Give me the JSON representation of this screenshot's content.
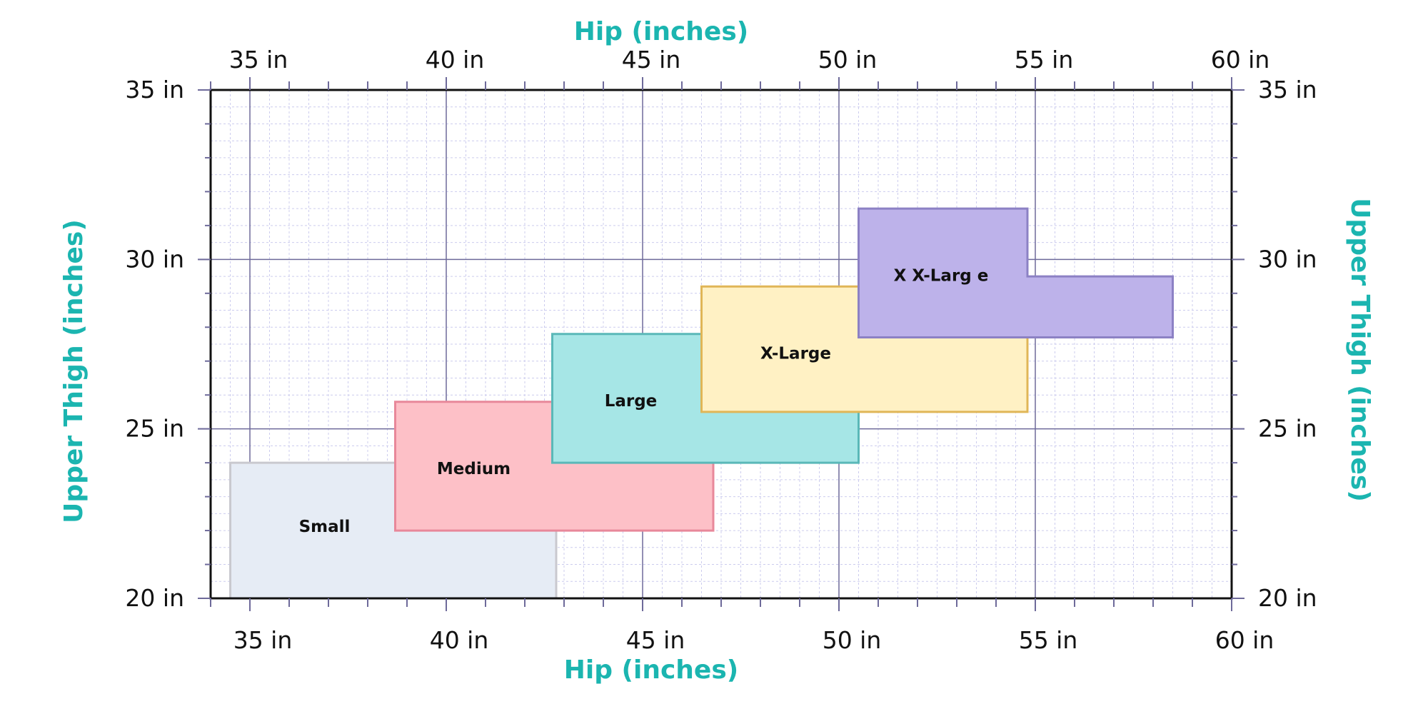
{
  "chart_data": {
    "type": "area",
    "title": "",
    "xlabel_top": "Hip (inches)",
    "xlabel_bottom": "Hip (inches)",
    "ylabel_left": "Upper Thigh (inches)",
    "ylabel_right": "Upper Thigh (inches)",
    "xlim": [
      34,
      60
    ],
    "ylim": [
      20,
      35
    ],
    "x_ticks": [
      35,
      40,
      45,
      50,
      55,
      60
    ],
    "y_ticks": [
      20,
      25,
      30,
      35
    ],
    "x_tick_labels": [
      "35 in",
      "40 in",
      "45 in",
      "50 in",
      "55 in",
      "60 in"
    ],
    "y_tick_labels": [
      "20 in",
      "25 in",
      "30 in",
      "35 in"
    ],
    "grid": true,
    "regions": [
      {
        "name": "Small",
        "label": "Small",
        "fill": "#e6ecf5",
        "stroke": "#c9c9cf",
        "polygon": [
          [
            34.5,
            20
          ],
          [
            34.5,
            24
          ],
          [
            42.8,
            24
          ],
          [
            42.8,
            20
          ]
        ],
        "label_at": [
          36.9,
          22.1
        ]
      },
      {
        "name": "Medium",
        "label": "Medium",
        "fill": "#fdc0c7",
        "stroke": "#e8889a",
        "polygon": [
          [
            38.7,
            22
          ],
          [
            38.7,
            25.8
          ],
          [
            46.8,
            25.8
          ],
          [
            46.8,
            22
          ]
        ],
        "label_at": [
          40.7,
          23.8
        ]
      },
      {
        "name": "Large",
        "label": "Large",
        "fill": "#a6e6e6",
        "stroke": "#5ab8b8",
        "polygon": [
          [
            42.7,
            24
          ],
          [
            42.7,
            27.8
          ],
          [
            50.5,
            27.8
          ],
          [
            50.5,
            24
          ]
        ],
        "label_at": [
          44.7,
          25.8
        ]
      },
      {
        "name": "X-Large",
        "label": "X-Large",
        "fill": "#fff1c4",
        "stroke": "#e0b657",
        "polygon": [
          [
            46.5,
            25.5
          ],
          [
            46.5,
            29.2
          ],
          [
            54.8,
            29.2
          ],
          [
            54.8,
            25.5
          ]
        ],
        "label_at": [
          48.9,
          27.2
        ]
      },
      {
        "name": "X X-Larg e",
        "label": "X X-Larg e",
        "fill": "#bdb2ea",
        "stroke": "#8c81c4",
        "polygon": [
          [
            50.5,
            27.7
          ],
          [
            50.5,
            31.5
          ],
          [
            54.8,
            31.5
          ],
          [
            54.8,
            29.5
          ],
          [
            58.5,
            29.5
          ],
          [
            58.5,
            27.7
          ]
        ],
        "label_at": [
          52.6,
          29.5
        ]
      }
    ]
  }
}
